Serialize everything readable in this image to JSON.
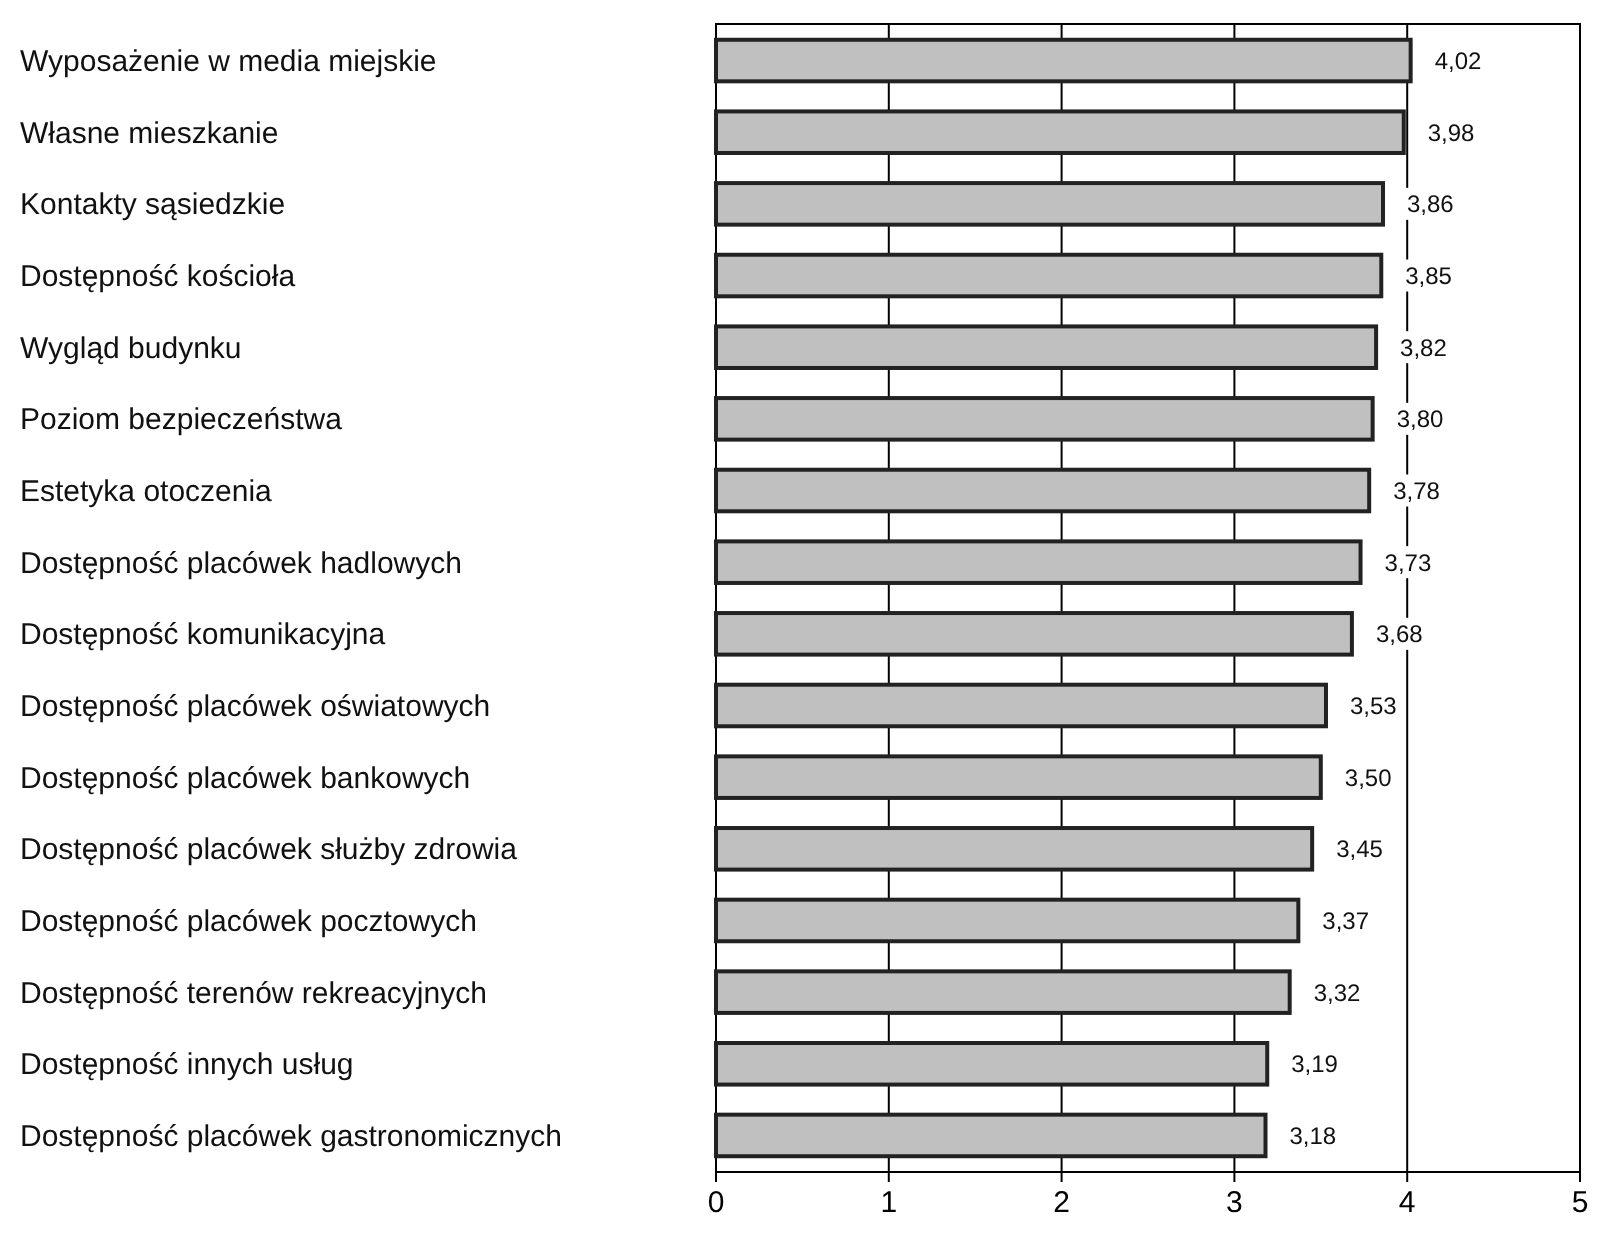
{
  "chart_data": {
    "type": "bar",
    "orientation": "horizontal",
    "categories": [
      "Wyposażenie w media miejskie",
      "Własne mieszkanie",
      "Kontakty sąsiedzkie",
      "Dostępność kościoła",
      "Wygląd budynku",
      "Poziom bezpieczeństwa",
      "Estetyka otoczenia",
      "Dostępność placówek hadlowych",
      "Dostępność komunikacyjna",
      "Dostępność placówek oświatowych",
      "Dostępność placówek bankowych",
      "Dostępność placówek służby zdrowia",
      "Dostępność placówek pocztowych",
      "Dostępność terenów rekreacyjnych",
      "Dostępność innych usług",
      "Dostępność placówek gastronomicznych"
    ],
    "values": [
      4.02,
      3.98,
      3.86,
      3.85,
      3.82,
      3.8,
      3.78,
      3.73,
      3.68,
      3.53,
      3.5,
      3.45,
      3.37,
      3.32,
      3.19,
      3.18
    ],
    "value_labels": [
      "4,02",
      "3,98",
      "3,86",
      "3,85",
      "3,82",
      "3,80",
      "3,78",
      "3,73",
      "3,68",
      "3,53",
      "3,50",
      "3,45",
      "3,37",
      "3,32",
      "3,19",
      "3,18"
    ],
    "color": "#c0c0c0",
    "xlim": [
      0,
      5
    ],
    "xticks": [
      0,
      1,
      2,
      3,
      4,
      5
    ],
    "grid": "x"
  }
}
